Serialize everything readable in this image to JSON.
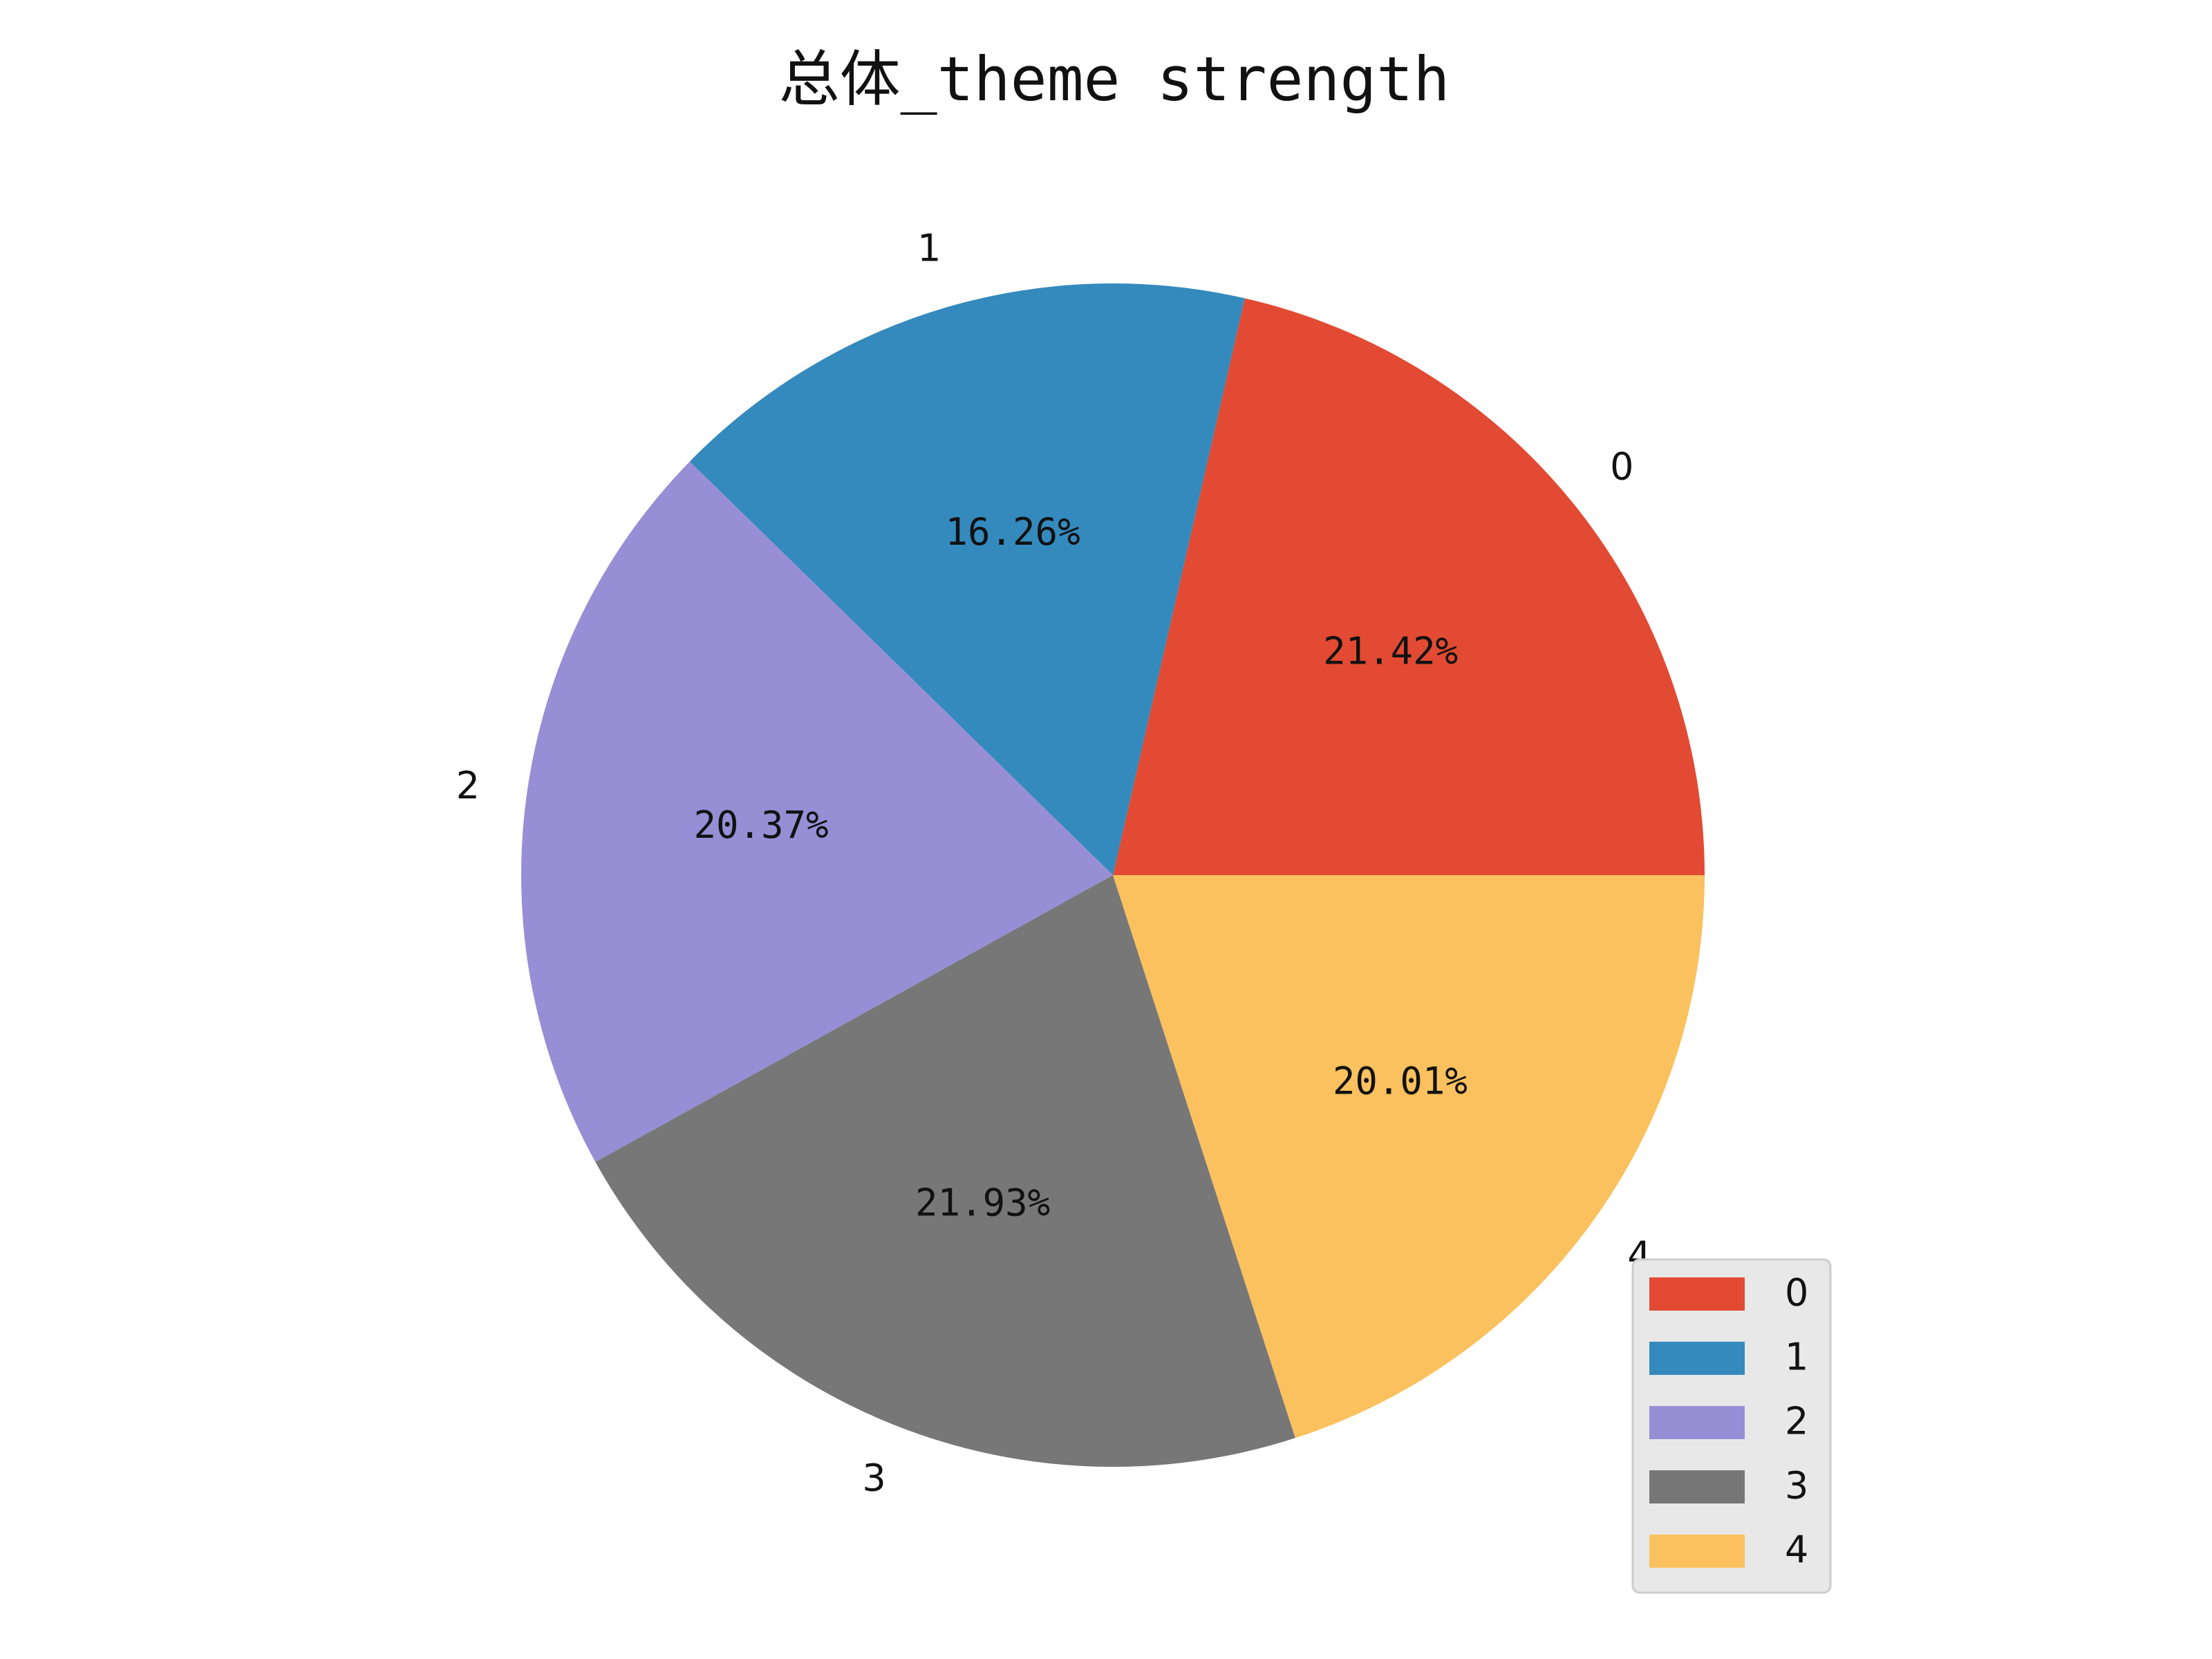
{
  "chart_data": {
    "type": "pie",
    "title": "总体_theme strength",
    "categories": [
      "0",
      "1",
      "2",
      "3",
      "4"
    ],
    "values": [
      21.42,
      16.26,
      20.37,
      21.93,
      20.01
    ],
    "value_labels": [
      "21.42%",
      "16.26%",
      "20.37%",
      "21.93%",
      "20.01%"
    ],
    "colors": [
      "#E24A33",
      "#348ABD",
      "#988ED5",
      "#777777",
      "#FBC15E"
    ],
    "start_angle_deg": 0,
    "direction": "counterclockwise",
    "legend": {
      "placement": "lower-right",
      "entries": [
        "0",
        "1",
        "2",
        "3",
        "4"
      ]
    }
  }
}
